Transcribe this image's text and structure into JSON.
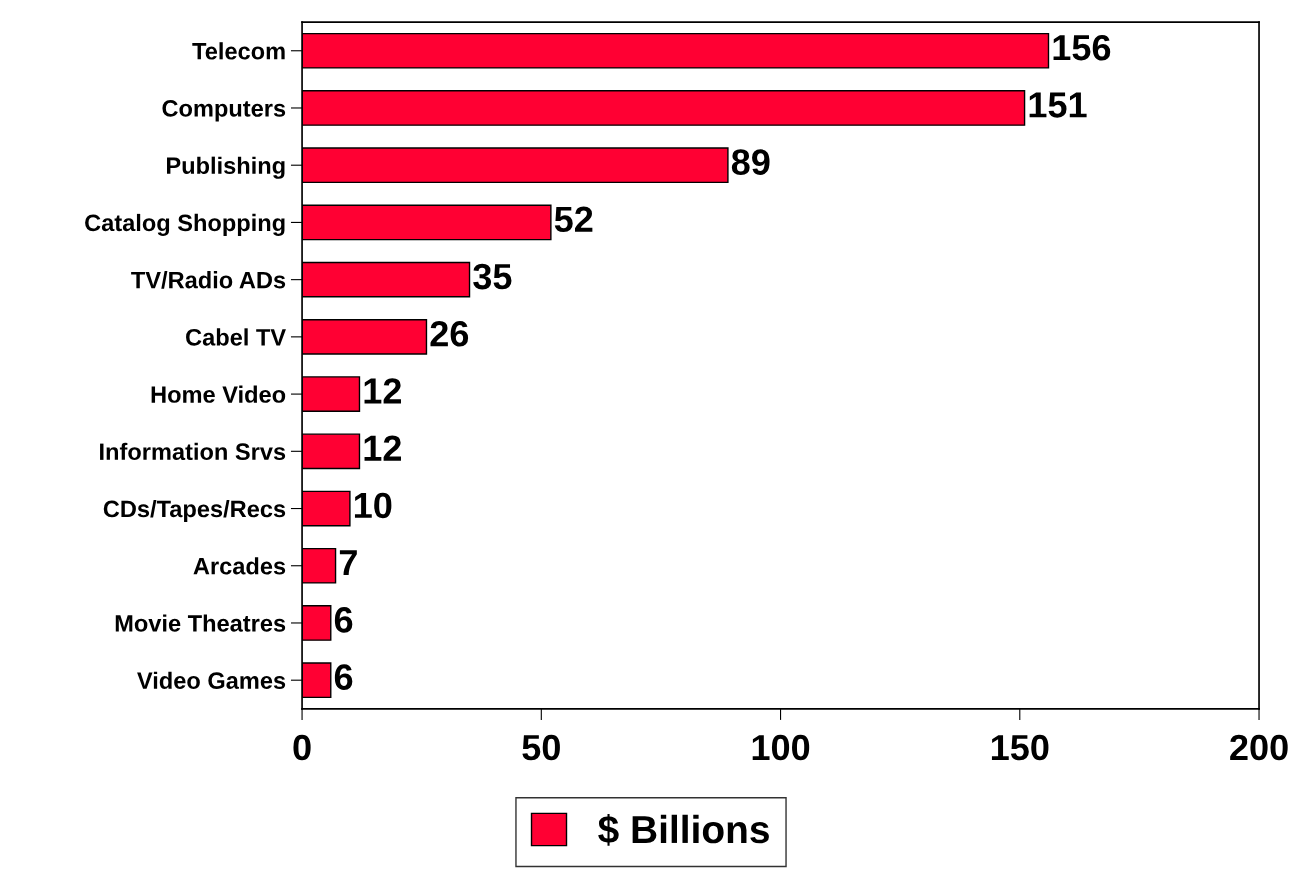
{
  "chart_data": {
    "type": "bar",
    "orientation": "horizontal",
    "categories": [
      "Telecom",
      "Computers",
      "Publishing",
      "Catalog Shopping",
      "TV/Radio ADs",
      "Cabel TV",
      "Home Video",
      "Information Srvs",
      "CDs/Tapes/Recs",
      "Arcades",
      "Movie Theatres",
      "Video Games"
    ],
    "series": [
      {
        "name": "$ Billions",
        "color": "#ff0033",
        "values": [
          156,
          151,
          89,
          52,
          35,
          26,
          12,
          12,
          10,
          7,
          6,
          6
        ]
      }
    ],
    "xlim": [
      0,
      200
    ],
    "xticks": [
      0,
      50,
      100,
      150,
      200
    ],
    "data_labels": true,
    "grid": false,
    "legend": "bottom"
  }
}
